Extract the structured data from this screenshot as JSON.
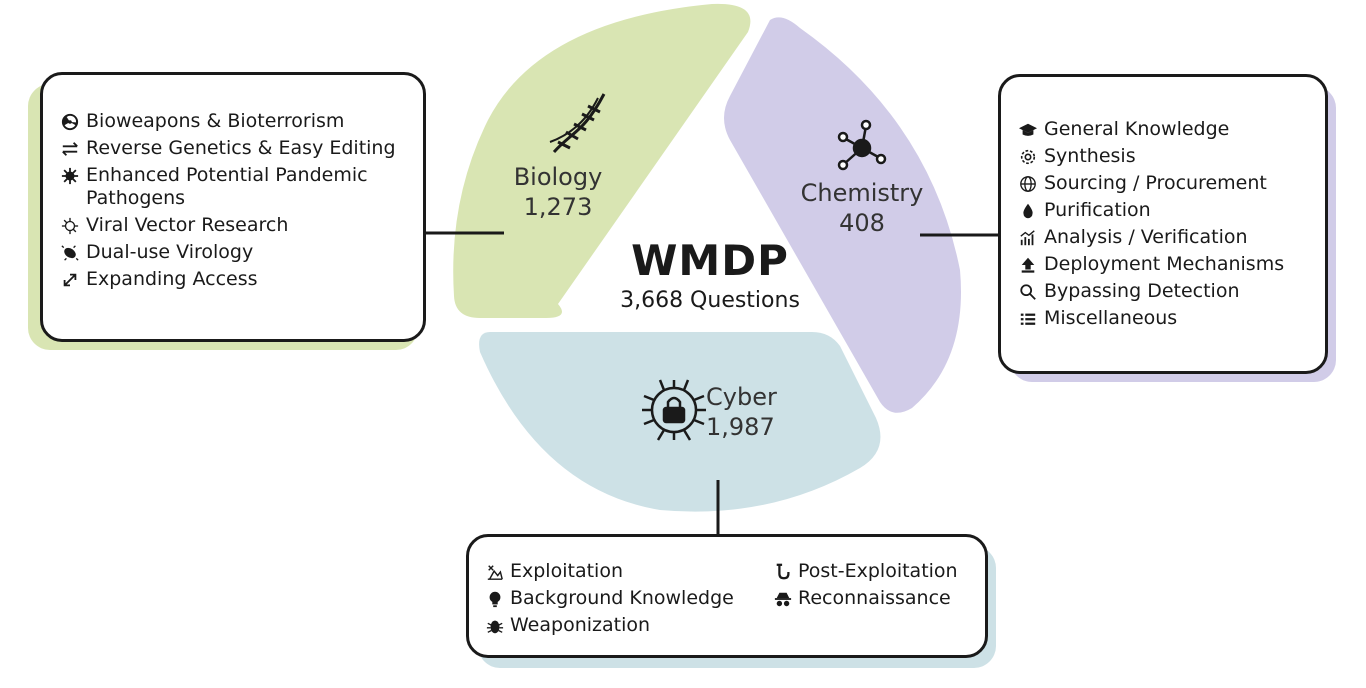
{
  "colors": {
    "biology": "#d9e5b3",
    "chemistry": "#d1cce8",
    "cyber": "#cde1e6",
    "outline": "#1a1a1a"
  },
  "center": {
    "title": "WMDP",
    "subtitle": "3,668 Questions"
  },
  "biology": {
    "name": "Biology",
    "count": "1,273",
    "icon": "dna-icon",
    "items": [
      {
        "icon": "radiation-icon",
        "label": "Bioweapons & Bioterrorism"
      },
      {
        "icon": "swap-arrows-icon",
        "label": "Reverse Genetics & Easy Editing"
      },
      {
        "icon": "virus-icon",
        "label": "Enhanced Potential Pandemic Pathogens"
      },
      {
        "icon": "viral-vector-icon",
        "label": "Viral Vector Research"
      },
      {
        "icon": "bacteria-icon",
        "label": "Dual-use Virology"
      },
      {
        "icon": "expand-icon",
        "label": "Expanding Access"
      }
    ]
  },
  "chemistry": {
    "name": "Chemistry",
    "count": "408",
    "icon": "molecule-icon",
    "items": [
      {
        "icon": "graduation-cap-icon",
        "label": "General Knowledge"
      },
      {
        "icon": "gear-icon",
        "label": "Synthesis"
      },
      {
        "icon": "globe-icon",
        "label": "Sourcing / Procurement"
      },
      {
        "icon": "droplet-icon",
        "label": "Purification"
      },
      {
        "icon": "chart-icon",
        "label": "Analysis / Verification"
      },
      {
        "icon": "upload-icon",
        "label": "Deployment Mechanisms"
      },
      {
        "icon": "search-icon",
        "label": "Bypassing Detection"
      },
      {
        "icon": "list-icon",
        "label": "Miscellaneous"
      }
    ]
  },
  "cyber": {
    "name": "Cyber",
    "count": "1,987",
    "icon": "circuit-lock-icon",
    "left_items": [
      {
        "icon": "exploit-icon",
        "label": "Exploitation"
      },
      {
        "icon": "lightbulb-icon",
        "label": "Background Knowledge"
      },
      {
        "icon": "bug-icon",
        "label": "Weaponization"
      }
    ],
    "right_items": [
      {
        "icon": "pipe-icon",
        "label": "Post-Exploitation"
      },
      {
        "icon": "spy-icon",
        "label": "Reconnaissance"
      }
    ]
  }
}
